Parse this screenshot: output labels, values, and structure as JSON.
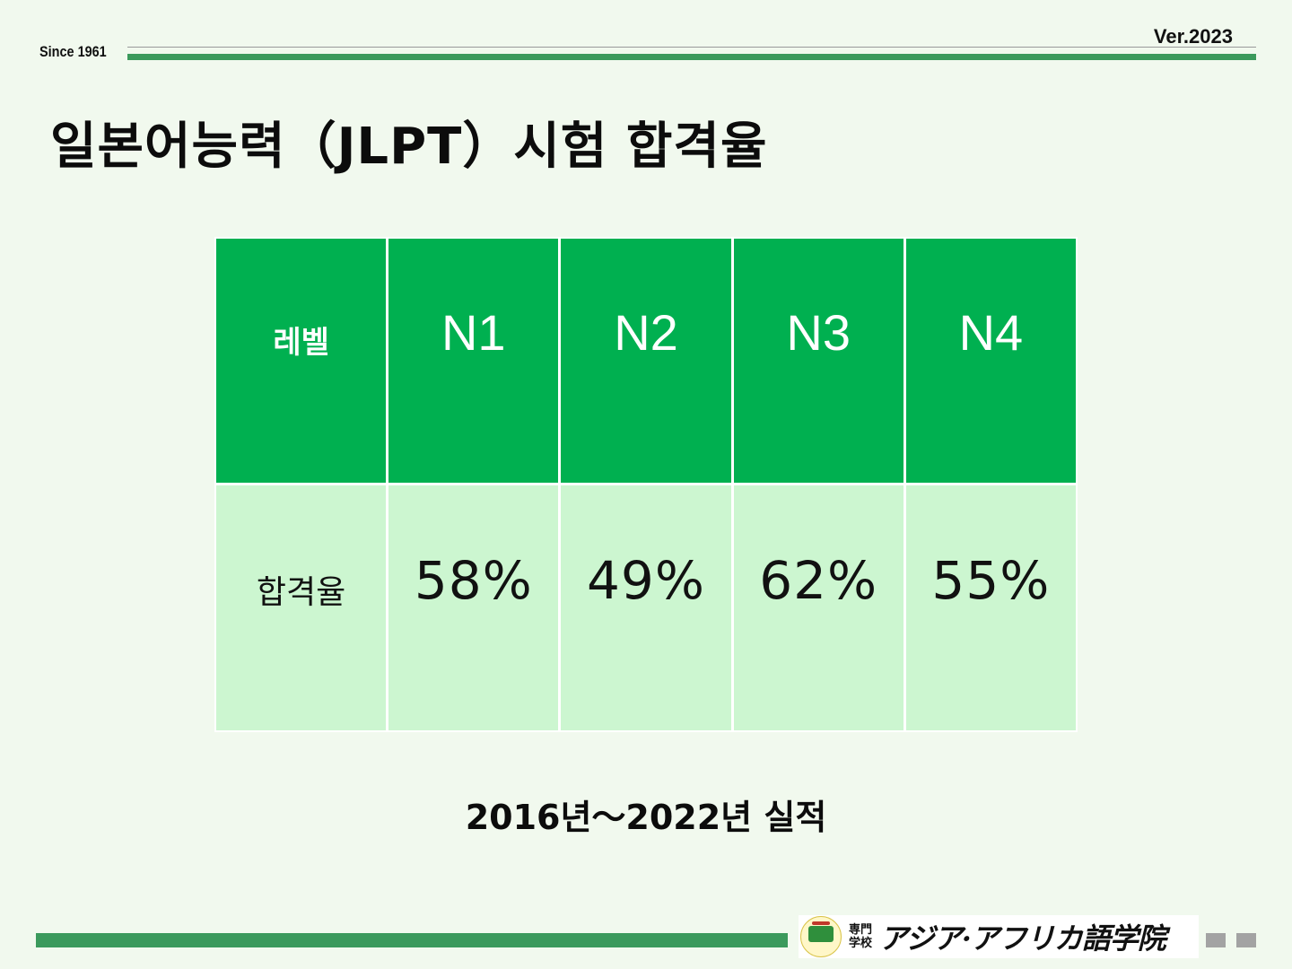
{
  "header": {
    "since": "Since 1961",
    "version": "Ver.2023"
  },
  "title": "일본어능력（JLPT）시험 합격율",
  "table": {
    "header_label": "레벨",
    "row_label": "합격율",
    "columns": [
      {
        "level": "N1",
        "rate": "58%"
      },
      {
        "level": "N2",
        "rate": "49%"
      },
      {
        "level": "N3",
        "rate": "62%"
      },
      {
        "level": "N4",
        "rate": "55%"
      }
    ]
  },
  "footnote": "2016년～2022년 실적",
  "logo": {
    "school_kind_line1": "専門",
    "school_kind_line2": "学校",
    "school_name": "アジア·アフリカ語学院"
  },
  "colors": {
    "header_green": "#00b050",
    "body_green": "#ccf6d0",
    "accent_bar": "#3b9a5c",
    "background": "#f1f9ee"
  }
}
